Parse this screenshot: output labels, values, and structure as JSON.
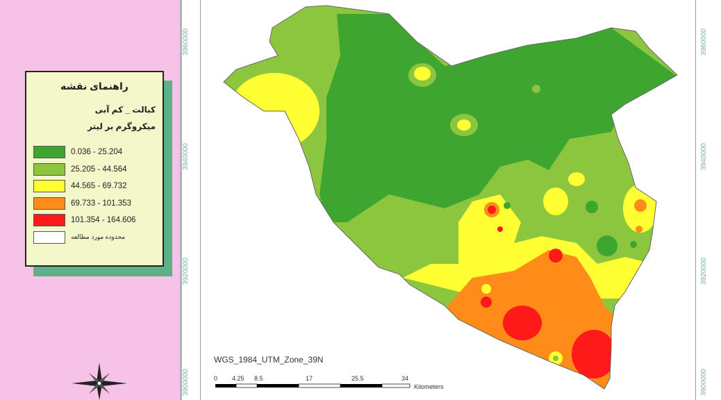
{
  "legend": {
    "title": "راهنمای نقشه",
    "subtitle": "کبالت _ کم آبی",
    "unit": "میکروگرم بر لیتر",
    "classes": [
      {
        "range": "0.036 - 25.204",
        "color": "#3fa531"
      },
      {
        "range": "25.205 - 44.564",
        "color": "#8cc63f"
      },
      {
        "range": "44.565 - 69.732",
        "color": "#ffff33"
      },
      {
        "range": "69.733 - 101.353",
        "color": "#ff8c19"
      },
      {
        "range": "101.354 - 164.606",
        "color": "#ff1a1a"
      }
    ],
    "study_area_label": "محدوده مورد مطالعه",
    "study_area_color": "#ffffff"
  },
  "map": {
    "projection": "WGS_1984_UTM_Zone_39N",
    "grid_labels": {
      "left": [
        "3960000",
        "3940000",
        "3920000",
        "3900000"
      ],
      "right": [
        "3960000",
        "3940000",
        "3920000",
        "3900000"
      ]
    },
    "scale_bar": {
      "ticks": [
        "0",
        "4.25",
        "8.5",
        "17",
        "25.5",
        "34"
      ],
      "unit": "Kilometers"
    }
  }
}
